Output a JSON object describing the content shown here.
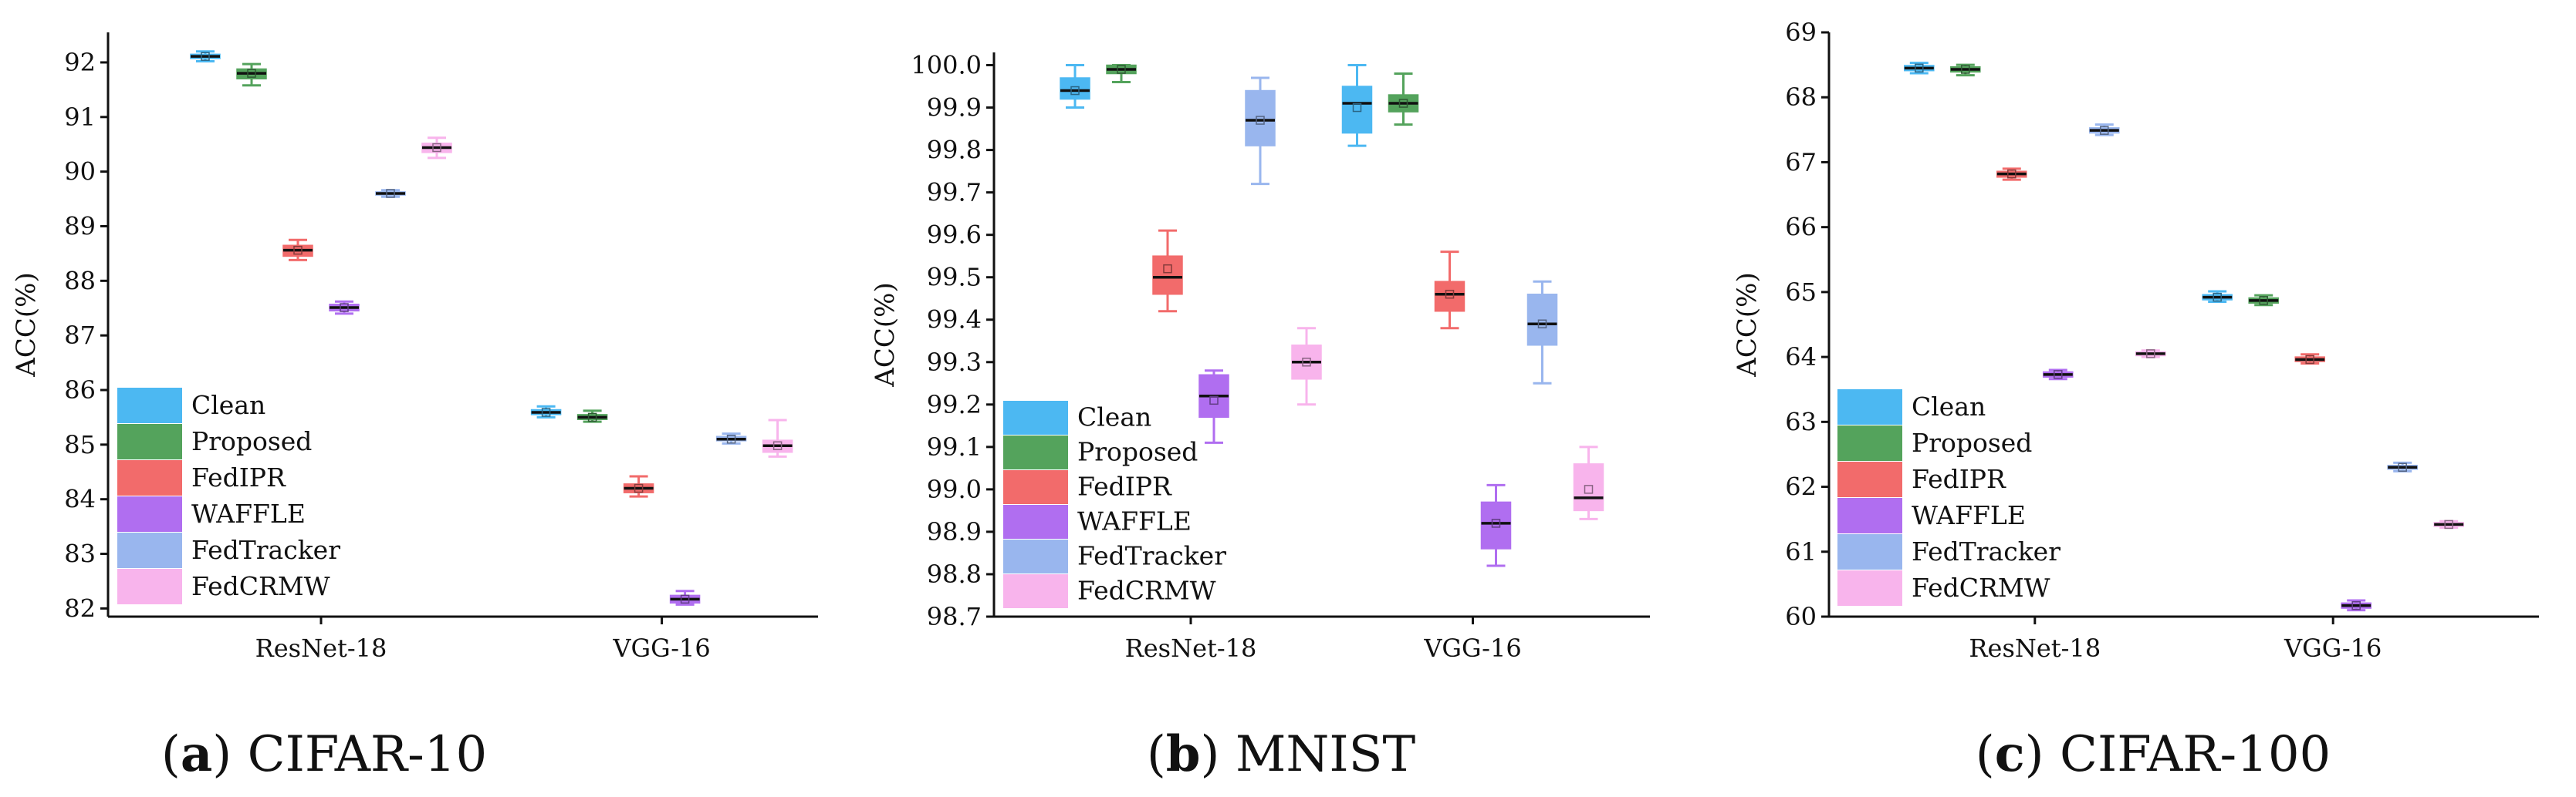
{
  "figure": {
    "legend_entries": [
      "Clean",
      "Proposed",
      "FedIPR",
      "WAFFLE",
      "FedTracker",
      "FedCRMW"
    ],
    "colors": {
      "Clean": "#4cb8f2",
      "Proposed": "#54a35c",
      "FedIPR": "#f26b6b",
      "WAFFLE": "#b06ef0",
      "FedTracker": "#99b6ee",
      "FedCRMW": "#f8b4ec"
    }
  },
  "chart_data": [
    {
      "type": "box",
      "caption_letter": "a",
      "caption_name": "CIFAR-10",
      "ylabel": "ACC(%)",
      "xlabel": "",
      "categories": [
        "ResNet-18",
        "VGG-16"
      ],
      "ylim": [
        81.85,
        92.55
      ],
      "yticks": [
        "82",
        "83",
        "84",
        "85",
        "86",
        "87",
        "88",
        "89",
        "90",
        "91",
        "92"
      ],
      "legend_position": "lower-left",
      "series": [
        {
          "name": "Clean",
          "boxes": [
            {
              "min": 92.02,
              "q1": 92.07,
              "median": 92.11,
              "mean": 92.11,
              "q3": 92.15,
              "max": 92.2
            },
            {
              "min": 85.5,
              "q1": 85.55,
              "median": 85.59,
              "mean": 85.59,
              "q3": 85.64,
              "max": 85.7
            }
          ]
        },
        {
          "name": "Proposed",
          "boxes": [
            {
              "min": 91.58,
              "q1": 91.7,
              "median": 91.8,
              "mean": 91.8,
              "q3": 91.88,
              "max": 91.97
            },
            {
              "min": 85.42,
              "q1": 85.46,
              "median": 85.5,
              "mean": 85.5,
              "q3": 85.55,
              "max": 85.62
            }
          ]
        },
        {
          "name": "FedIPR",
          "boxes": [
            {
              "min": 88.38,
              "q1": 88.45,
              "median": 88.56,
              "mean": 88.56,
              "q3": 88.65,
              "max": 88.75
            },
            {
              "min": 84.05,
              "q1": 84.12,
              "median": 84.2,
              "mean": 84.2,
              "q3": 84.28,
              "max": 84.42
            }
          ]
        },
        {
          "name": "WAFFLE",
          "boxes": [
            {
              "min": 87.4,
              "q1": 87.45,
              "median": 87.51,
              "mean": 87.51,
              "q3": 87.57,
              "max": 87.62
            },
            {
              "min": 82.07,
              "q1": 82.1,
              "median": 82.17,
              "mean": 82.17,
              "q3": 82.24,
              "max": 82.32
            }
          ]
        },
        {
          "name": "FedTracker",
          "boxes": [
            {
              "min": 89.54,
              "q1": 89.57,
              "median": 89.6,
              "mean": 89.6,
              "q3": 89.63,
              "max": 89.66
            },
            {
              "min": 85.02,
              "q1": 85.07,
              "median": 85.1,
              "mean": 85.1,
              "q3": 85.15,
              "max": 85.2
            }
          ]
        },
        {
          "name": "FedCRMW",
          "boxes": [
            {
              "min": 90.25,
              "q1": 90.35,
              "median": 90.44,
              "mean": 90.44,
              "q3": 90.52,
              "max": 90.62
            },
            {
              "min": 84.78,
              "q1": 84.86,
              "median": 84.98,
              "mean": 84.98,
              "q3": 85.08,
              "max": 85.45
            }
          ]
        }
      ]
    },
    {
      "type": "box",
      "caption_letter": "b",
      "caption_name": "MNIST",
      "ylabel": "ACC(%)",
      "xlabel": "",
      "categories": [
        "ResNet-18",
        "VGG-16"
      ],
      "ylim": [
        98.7,
        100.03
      ],
      "yticks": [
        "98.7",
        "98.8",
        "98.9",
        "99.0",
        "99.1",
        "99.2",
        "99.3",
        "99.4",
        "99.5",
        "99.6",
        "99.7",
        "99.8",
        "99.9",
        "100.0"
      ],
      "legend_position": "lower-left",
      "series": [
        {
          "name": "Clean",
          "boxes": [
            {
              "min": 99.9,
              "q1": 99.92,
              "median": 99.94,
              "mean": 99.94,
              "q3": 99.97,
              "max": 100.0
            },
            {
              "min": 99.81,
              "q1": 99.84,
              "median": 99.91,
              "mean": 99.9,
              "q3": 99.95,
              "max": 100.0
            }
          ]
        },
        {
          "name": "Proposed",
          "boxes": [
            {
              "min": 99.96,
              "q1": 99.98,
              "median": 99.99,
              "mean": 99.99,
              "q3": 100.0,
              "max": 100.0
            },
            {
              "min": 99.86,
              "q1": 99.89,
              "median": 99.91,
              "mean": 99.91,
              "q3": 99.93,
              "max": 99.98
            }
          ]
        },
        {
          "name": "FedIPR",
          "boxes": [
            {
              "min": 99.42,
              "q1": 99.46,
              "median": 99.5,
              "mean": 99.52,
              "q3": 99.55,
              "max": 99.61
            },
            {
              "min": 99.38,
              "q1": 99.42,
              "median": 99.46,
              "mean": 99.46,
              "q3": 99.49,
              "max": 99.56
            }
          ]
        },
        {
          "name": "WAFFLE",
          "boxes": [
            {
              "min": 99.11,
              "q1": 99.17,
              "median": 99.22,
              "mean": 99.21,
              "q3": 99.27,
              "max": 99.28
            },
            {
              "min": 98.82,
              "q1": 98.86,
              "median": 98.92,
              "mean": 98.92,
              "q3": 98.97,
              "max": 99.01
            }
          ]
        },
        {
          "name": "FedTracker",
          "boxes": [
            {
              "min": 99.72,
              "q1": 99.81,
              "median": 99.87,
              "mean": 99.87,
              "q3": 99.94,
              "max": 99.97
            },
            {
              "min": 99.25,
              "q1": 99.34,
              "median": 99.39,
              "mean": 99.39,
              "q3": 99.46,
              "max": 99.49
            }
          ]
        },
        {
          "name": "FedCRMW",
          "boxes": [
            {
              "min": 99.2,
              "q1": 99.26,
              "median": 99.3,
              "mean": 99.3,
              "q3": 99.34,
              "max": 99.38
            },
            {
              "min": 98.93,
              "q1": 98.95,
              "median": 98.98,
              "mean": 99.0,
              "q3": 99.06,
              "max": 99.1
            }
          ]
        }
      ]
    },
    {
      "type": "box",
      "caption_letter": "c",
      "caption_name": "CIFAR-100",
      "ylabel": "ACC(%)",
      "xlabel": "",
      "categories": [
        "ResNet-18",
        "VGG-16"
      ],
      "ylim": [
        60.0,
        69.0
      ],
      "yticks": [
        "60",
        "61",
        "62",
        "63",
        "64",
        "65",
        "66",
        "67",
        "68",
        "69"
      ],
      "legend_position": "lower-left",
      "series": [
        {
          "name": "Clean",
          "boxes": [
            {
              "min": 68.37,
              "q1": 68.41,
              "median": 68.45,
              "mean": 68.45,
              "q3": 68.49,
              "max": 68.53
            },
            {
              "min": 64.85,
              "q1": 64.88,
              "median": 64.92,
              "mean": 64.92,
              "q3": 64.96,
              "max": 65.01
            }
          ]
        },
        {
          "name": "Proposed",
          "boxes": [
            {
              "min": 68.34,
              "q1": 68.39,
              "median": 68.43,
              "mean": 68.43,
              "q3": 68.47,
              "max": 68.5
            },
            {
              "min": 64.8,
              "q1": 64.83,
              "median": 64.87,
              "mean": 64.87,
              "q3": 64.91,
              "max": 64.95
            }
          ]
        },
        {
          "name": "FedIPR",
          "boxes": [
            {
              "min": 66.73,
              "q1": 66.77,
              "median": 66.82,
              "mean": 66.82,
              "q3": 66.86,
              "max": 66.9
            },
            {
              "min": 63.9,
              "q1": 63.93,
              "median": 63.96,
              "mean": 63.96,
              "q3": 64.0,
              "max": 64.04
            }
          ]
        },
        {
          "name": "WAFFLE",
          "boxes": [
            {
              "min": 63.66,
              "q1": 63.69,
              "median": 63.73,
              "mean": 63.73,
              "q3": 63.77,
              "max": 63.8
            },
            {
              "min": 60.1,
              "q1": 60.13,
              "median": 60.17,
              "mean": 60.17,
              "q3": 60.21,
              "max": 60.25
            }
          ]
        },
        {
          "name": "FedTracker",
          "boxes": [
            {
              "min": 67.42,
              "q1": 67.45,
              "median": 67.49,
              "mean": 67.49,
              "q3": 67.53,
              "max": 67.58
            },
            {
              "min": 62.24,
              "q1": 62.27,
              "median": 62.3,
              "mean": 62.3,
              "q3": 62.33,
              "max": 62.37
            }
          ]
        },
        {
          "name": "FedCRMW",
          "boxes": [
            {
              "min": 64.0,
              "q1": 64.02,
              "median": 64.05,
              "mean": 64.05,
              "q3": 64.08,
              "max": 64.1
            },
            {
              "min": 61.37,
              "q1": 61.39,
              "median": 61.42,
              "mean": 61.42,
              "q3": 61.45,
              "max": 61.47
            }
          ]
        }
      ]
    }
  ]
}
